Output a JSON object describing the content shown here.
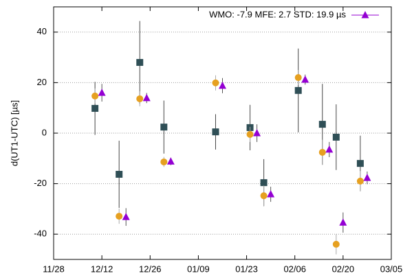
{
  "chart_data": {
    "type": "scatter",
    "ylabel": "d(UT1-UTC) [µs]",
    "xlim": [
      "11/28",
      "03/05"
    ],
    "xticks": [
      "11/28",
      "12/12",
      "12/26",
      "01/09",
      "01/23",
      "02/06",
      "02/20",
      "03/05"
    ],
    "ylim": [
      -50,
      50
    ],
    "yticks": [
      -40,
      -20,
      0,
      20,
      40
    ],
    "grid": true,
    "legend": "top right",
    "series": [
      {
        "marker": "square",
        "color": "#2f4f56",
        "error_color": "#444444",
        "x": [
          "12/10",
          "12/17",
          "12/23",
          "12/30",
          "01/14",
          "01/24",
          "01/28",
          "02/07",
          "02/14",
          "02/18",
          "02/25"
        ],
        "values": [
          9.8,
          -16.3,
          28,
          2.4,
          0.5,
          2.2,
          -19.6,
          16.9,
          3.5,
          -1.6,
          -12
        ],
        "errors": [
          10.5,
          13.3,
          16.4,
          10.5,
          7,
          9,
          9.3,
          16.6,
          16,
          13,
          11
        ]
      },
      {
        "marker": "circle",
        "color": "#e6a020",
        "error_color": "#aaaaaa",
        "x": [
          "12/10",
          "12/17",
          "12/23",
          "12/30",
          "01/14",
          "01/24",
          "01/28",
          "02/07",
          "02/14",
          "02/18",
          "02/25"
        ],
        "values": [
          14.7,
          -32.9,
          13.6,
          -11.4,
          19.9,
          -0.5,
          -24.8,
          22,
          -7.6,
          -44,
          -19
        ],
        "errors": [
          3,
          3,
          3,
          2,
          3,
          3,
          4,
          3,
          5,
          4,
          4
        ]
      },
      {
        "name": "WMO: -7.9 MFE: 2.7 STD: 19.9 µs",
        "marker": "triangle",
        "color": "#9400d3",
        "error_color": "#555555",
        "x": [
          "12/12",
          "12/19",
          "12/25",
          "01/01",
          "01/16",
          "01/26",
          "01/30",
          "02/09",
          "02/16",
          "02/20",
          "02/27"
        ],
        "values": [
          16,
          -33.2,
          13.9,
          -11.2,
          18.8,
          0,
          -24.2,
          21.2,
          -6.5,
          -35.4,
          -17.7
        ],
        "errors": [
          3.5,
          3.5,
          2,
          1.5,
          3,
          3.5,
          3,
          2,
          3,
          4,
          2.5
        ]
      }
    ]
  }
}
